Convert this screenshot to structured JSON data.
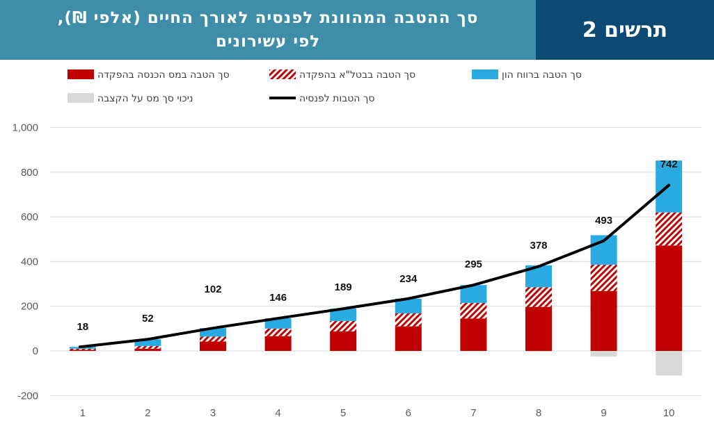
{
  "header": {
    "title_line1": "סך ההטבה המהוונת לפנסיה לאורך החיים (אלפי ₪),",
    "title_line2": "לפי עשירונים",
    "figure_label": "תרשים 2"
  },
  "colors": {
    "title_bg": "#3f8ea9",
    "figure_label_bg": "#0c4a74",
    "income_tax_deposit": "#c00000",
    "ni_deposit_hatch": "#c00000",
    "capital_gains": "#29abe2",
    "annuity_tax_deduction": "#d9d9d9",
    "total_line": "#000000"
  },
  "chart_data": {
    "type": "bar",
    "stacked": true,
    "categories": [
      "1",
      "2",
      "3",
      "4",
      "5",
      "6",
      "7",
      "8",
      "9",
      "10"
    ],
    "series": [
      {
        "name": "סך הטבה במס הכנסה בהפקדה",
        "kind": "bar",
        "style": "solid",
        "color": "#c00000",
        "values": [
          5,
          10,
          42,
          66,
          87,
          110,
          145,
          197,
          268,
          472
        ]
      },
      {
        "name": "סך הטבה בבטל\"א בהפקדה",
        "kind": "bar",
        "style": "hatched",
        "color": "#c00000",
        "values": [
          5,
          12,
          22,
          34,
          47,
          58,
          70,
          88,
          118,
          148
        ]
      },
      {
        "name": "סך הטבה ברווח הון",
        "kind": "bar",
        "style": "solid",
        "color": "#29abe2",
        "values": [
          8,
          30,
          38,
          46,
          55,
          66,
          80,
          98,
          132,
          232
        ]
      },
      {
        "name": "ניכוי סך מס על הקצבה",
        "kind": "bar",
        "style": "solid",
        "color": "#d9d9d9",
        "values": [
          0,
          0,
          0,
          0,
          0,
          0,
          0,
          -3,
          -25,
          -110
        ]
      },
      {
        "name": "סך הטבות לפנסיה",
        "kind": "line",
        "color": "#000000",
        "values": [
          18,
          52,
          102,
          146,
          189,
          234,
          295,
          378,
          493,
          742
        ]
      }
    ],
    "data_labels": [
      "18",
      "52",
      "102",
      "146",
      "189",
      "234",
      "295",
      "378",
      "493",
      "742"
    ],
    "y_ticks": [
      "-200",
      "0",
      "200",
      "400",
      "600",
      "800",
      "1,000"
    ],
    "ylim": [
      -200,
      1000
    ],
    "grid": true,
    "legend_position": "top"
  }
}
